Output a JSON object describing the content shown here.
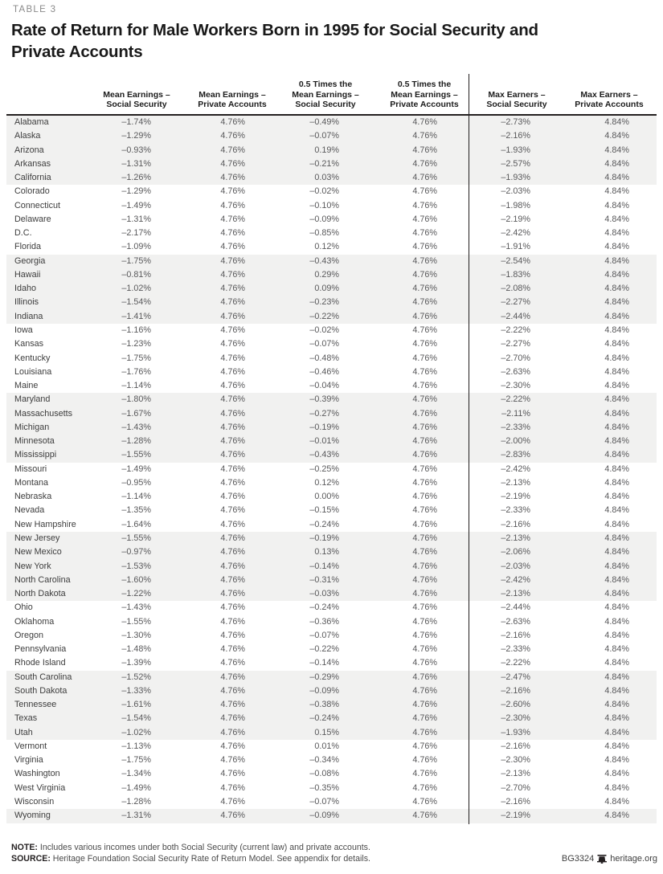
{
  "table_label": "TABLE 3",
  "title": "Rate of Return for Male Workers Born in 1995 for Social Security and\nPrivate Accounts",
  "columns": [
    "Mean Earnings –\nSocial Security",
    "Mean Earnings –\nPrivate Accounts",
    "0.5 Times the\nMean Earnings –\nSocial Security",
    "0.5 Times the\nMean Earnings –\nPrivate Accounts",
    "Max Earners –\nSocial Security",
    "Max Earners –\nPrivate Accounts"
  ],
  "rows": [
    {
      "state": "Alabama",
      "values": [
        "–1.74%",
        "4.76%",
        "–0.49%",
        "4.76%",
        "–2.73%",
        "4.84%"
      ]
    },
    {
      "state": "Alaska",
      "values": [
        "–1.29%",
        "4.76%",
        "–0.07%",
        "4.76%",
        "–2.16%",
        "4.84%"
      ]
    },
    {
      "state": "Arizona",
      "values": [
        "–0.93%",
        "4.76%",
        "0.19%",
        "4.76%",
        "–1.93%",
        "4.84%"
      ]
    },
    {
      "state": "Arkansas",
      "values": [
        "–1.31%",
        "4.76%",
        "–0.21%",
        "4.76%",
        "–2.57%",
        "4.84%"
      ]
    },
    {
      "state": "California",
      "values": [
        "–1.26%",
        "4.76%",
        "0.03%",
        "4.76%",
        "–1.93%",
        "4.84%"
      ]
    },
    {
      "state": "Colorado",
      "values": [
        "–1.29%",
        "4.76%",
        "–0.02%",
        "4.76%",
        "–2.03%",
        "4.84%"
      ]
    },
    {
      "state": "Connecticut",
      "values": [
        "–1.49%",
        "4.76%",
        "–0.10%",
        "4.76%",
        "–1.98%",
        "4.84%"
      ]
    },
    {
      "state": "Delaware",
      "values": [
        "–1.31%",
        "4.76%",
        "–0.09%",
        "4.76%",
        "–2.19%",
        "4.84%"
      ]
    },
    {
      "state": "D.C.",
      "values": [
        "–2.17%",
        "4.76%",
        "–0.85%",
        "4.76%",
        "–2.42%",
        "4.84%"
      ]
    },
    {
      "state": "Florida",
      "values": [
        "–1.09%",
        "4.76%",
        "0.12%",
        "4.76%",
        "–1.91%",
        "4.84%"
      ]
    },
    {
      "state": "Georgia",
      "values": [
        "–1.75%",
        "4.76%",
        "–0.43%",
        "4.76%",
        "–2.54%",
        "4.84%"
      ]
    },
    {
      "state": "Hawaii",
      "values": [
        "–0.81%",
        "4.76%",
        "0.29%",
        "4.76%",
        "–1.83%",
        "4.84%"
      ]
    },
    {
      "state": "Idaho",
      "values": [
        "–1.02%",
        "4.76%",
        "0.09%",
        "4.76%",
        "–2.08%",
        "4.84%"
      ]
    },
    {
      "state": "Illinois",
      "values": [
        "–1.54%",
        "4.76%",
        "–0.23%",
        "4.76%",
        "–2.27%",
        "4.84%"
      ]
    },
    {
      "state": "Indiana",
      "values": [
        "–1.41%",
        "4.76%",
        "–0.22%",
        "4.76%",
        "–2.44%",
        "4.84%"
      ]
    },
    {
      "state": "Iowa",
      "values": [
        "–1.16%",
        "4.76%",
        "–0.02%",
        "4.76%",
        "–2.22%",
        "4.84%"
      ]
    },
    {
      "state": "Kansas",
      "values": [
        "–1.23%",
        "4.76%",
        "–0.07%",
        "4.76%",
        "–2.27%",
        "4.84%"
      ]
    },
    {
      "state": "Kentucky",
      "values": [
        "–1.75%",
        "4.76%",
        "–0.48%",
        "4.76%",
        "–2.70%",
        "4.84%"
      ]
    },
    {
      "state": "Louisiana",
      "values": [
        "–1.76%",
        "4.76%",
        "–0.46%",
        "4.76%",
        "–2.63%",
        "4.84%"
      ]
    },
    {
      "state": "Maine",
      "values": [
        "–1.14%",
        "4.76%",
        "–0.04%",
        "4.76%",
        "–2.30%",
        "4.84%"
      ]
    },
    {
      "state": "Maryland",
      "values": [
        "–1.80%",
        "4.76%",
        "–0.39%",
        "4.76%",
        "–2.22%",
        "4.84%"
      ]
    },
    {
      "state": "Massachusetts",
      "values": [
        "–1.67%",
        "4.76%",
        "–0.27%",
        "4.76%",
        "–2.11%",
        "4.84%"
      ]
    },
    {
      "state": "Michigan",
      "values": [
        "–1.43%",
        "4.76%",
        "–0.19%",
        "4.76%",
        "–2.33%",
        "4.84%"
      ]
    },
    {
      "state": "Minnesota",
      "values": [
        "–1.28%",
        "4.76%",
        "–0.01%",
        "4.76%",
        "–2.00%",
        "4.84%"
      ]
    },
    {
      "state": "Mississippi",
      "values": [
        "–1.55%",
        "4.76%",
        "–0.43%",
        "4.76%",
        "–2.83%",
        "4.84%"
      ]
    },
    {
      "state": "Missouri",
      "values": [
        "–1.49%",
        "4.76%",
        "–0.25%",
        "4.76%",
        "–2.42%",
        "4.84%"
      ]
    },
    {
      "state": "Montana",
      "values": [
        "–0.95%",
        "4.76%",
        "0.12%",
        "4.76%",
        "–2.13%",
        "4.84%"
      ]
    },
    {
      "state": "Nebraska",
      "values": [
        "–1.14%",
        "4.76%",
        "0.00%",
        "4.76%",
        "–2.19%",
        "4.84%"
      ]
    },
    {
      "state": "Nevada",
      "values": [
        "–1.35%",
        "4.76%",
        "–0.15%",
        "4.76%",
        "–2.33%",
        "4.84%"
      ]
    },
    {
      "state": "New Hampshire",
      "values": [
        "–1.64%",
        "4.76%",
        "–0.24%",
        "4.76%",
        "–2.16%",
        "4.84%"
      ]
    },
    {
      "state": "New Jersey",
      "values": [
        "–1.55%",
        "4.76%",
        "–0.19%",
        "4.76%",
        "–2.13%",
        "4.84%"
      ]
    },
    {
      "state": "New Mexico",
      "values": [
        "–0.97%",
        "4.76%",
        "0.13%",
        "4.76%",
        "–2.06%",
        "4.84%"
      ]
    },
    {
      "state": "New York",
      "values": [
        "–1.53%",
        "4.76%",
        "–0.14%",
        "4.76%",
        "–2.03%",
        "4.84%"
      ]
    },
    {
      "state": "North Carolina",
      "values": [
        "–1.60%",
        "4.76%",
        "–0.31%",
        "4.76%",
        "–2.42%",
        "4.84%"
      ]
    },
    {
      "state": "North Dakota",
      "values": [
        "–1.22%",
        "4.76%",
        "–0.03%",
        "4.76%",
        "–2.13%",
        "4.84%"
      ]
    },
    {
      "state": "Ohio",
      "values": [
        "–1.43%",
        "4.76%",
        "–0.24%",
        "4.76%",
        "–2.44%",
        "4.84%"
      ]
    },
    {
      "state": "Oklahoma",
      "values": [
        "–1.55%",
        "4.76%",
        "–0.36%",
        "4.76%",
        "–2.63%",
        "4.84%"
      ]
    },
    {
      "state": "Oregon",
      "values": [
        "–1.30%",
        "4.76%",
        "–0.07%",
        "4.76%",
        "–2.16%",
        "4.84%"
      ]
    },
    {
      "state": "Pennsylvania",
      "values": [
        "–1.48%",
        "4.76%",
        "–0.22%",
        "4.76%",
        "–2.33%",
        "4.84%"
      ]
    },
    {
      "state": "Rhode Island",
      "values": [
        "–1.39%",
        "4.76%",
        "–0.14%",
        "4.76%",
        "–2.22%",
        "4.84%"
      ]
    },
    {
      "state": "South Carolina",
      "values": [
        "–1.52%",
        "4.76%",
        "–0.29%",
        "4.76%",
        "–2.47%",
        "4.84%"
      ]
    },
    {
      "state": "South Dakota",
      "values": [
        "–1.33%",
        "4.76%",
        "–0.09%",
        "4.76%",
        "–2.16%",
        "4.84%"
      ]
    },
    {
      "state": "Tennessee",
      "values": [
        "–1.61%",
        "4.76%",
        "–0.38%",
        "4.76%",
        "–2.60%",
        "4.84%"
      ]
    },
    {
      "state": "Texas",
      "values": [
        "–1.54%",
        "4.76%",
        "–0.24%",
        "4.76%",
        "–2.30%",
        "4.84%"
      ]
    },
    {
      "state": "Utah",
      "values": [
        "–1.02%",
        "4.76%",
        "0.15%",
        "4.76%",
        "–1.93%",
        "4.84%"
      ]
    },
    {
      "state": "Vermont",
      "values": [
        "–1.13%",
        "4.76%",
        "0.01%",
        "4.76%",
        "–2.16%",
        "4.84%"
      ]
    },
    {
      "state": "Virginia",
      "values": [
        "–1.75%",
        "4.76%",
        "–0.34%",
        "4.76%",
        "–2.30%",
        "4.84%"
      ]
    },
    {
      "state": "Washington",
      "values": [
        "–1.34%",
        "4.76%",
        "–0.08%",
        "4.76%",
        "–2.13%",
        "4.84%"
      ]
    },
    {
      "state": "West Virginia",
      "values": [
        "–1.49%",
        "4.76%",
        "–0.35%",
        "4.76%",
        "–2.70%",
        "4.84%"
      ]
    },
    {
      "state": "Wisconsin",
      "values": [
        "–1.28%",
        "4.76%",
        "–0.07%",
        "4.76%",
        "–2.16%",
        "4.84%"
      ]
    },
    {
      "state": "Wyoming",
      "values": [
        "–1.31%",
        "4.76%",
        "–0.09%",
        "4.76%",
        "–2.19%",
        "4.84%"
      ]
    }
  ],
  "footer": {
    "note_label": "NOTE:",
    "note_text": " Includes various incomes under both Social Security (current law) and private accounts.",
    "source_label": "SOURCE:",
    "source_text": " Heritage Foundation Social Security Rate of Return Model. See appendix for details.",
    "doc_id": "BG3324",
    "site": "heritage.org"
  },
  "colors": {
    "band": "#f1f1f0",
    "rule": "#231f20",
    "title_text": "#191919",
    "label_gray": "#8a8a8a",
    "value_text": "#59595b"
  }
}
